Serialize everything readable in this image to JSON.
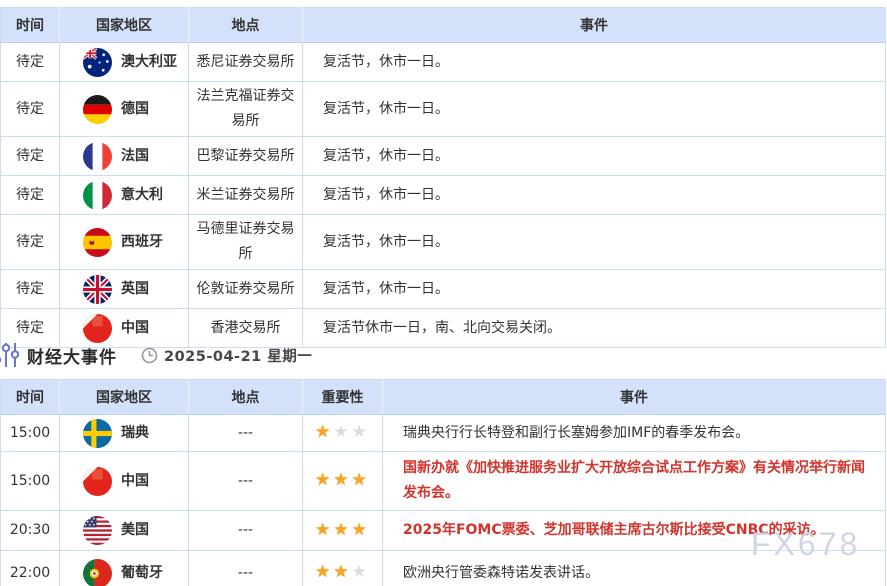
{
  "page": {
    "watermark": "FX678"
  },
  "holiday_table": {
    "headers": {
      "time": "时间",
      "country": "国家地区",
      "location": "地点",
      "event": "事件"
    },
    "rows": [
      {
        "time": "待定",
        "country": "澳大利亚",
        "flag": "australia",
        "location": "悉尼证券交易所",
        "event": "复活节，休市一日。"
      },
      {
        "time": "待定",
        "country": "德国",
        "flag": "germany",
        "location": "法兰克福证券交易所",
        "event": "复活节，休市一日。"
      },
      {
        "time": "待定",
        "country": "法国",
        "flag": "france",
        "location": "巴黎证券交易所",
        "event": "复活节，休市一日。"
      },
      {
        "time": "待定",
        "country": "意大利",
        "flag": "italy",
        "location": "米兰证券交易所",
        "event": "复活节，休市一日。"
      },
      {
        "time": "待定",
        "country": "西班牙",
        "flag": "spain",
        "location": "马德里证券交易所",
        "event": "复活节，休市一日。"
      },
      {
        "time": "待定",
        "country": "英国",
        "flag": "uk",
        "location": "伦敦证券交易所",
        "event": "复活节，休市一日。"
      },
      {
        "time": "待定",
        "country": "中国",
        "flag": "china",
        "location": "香港交易所",
        "event": "复活节休市一日，南、北向交易关闭。"
      }
    ]
  },
  "section": {
    "title": "财经大事件",
    "date": "2025-04-21 星期一"
  },
  "events_table": {
    "headers": {
      "time": "时间",
      "country": "国家地区",
      "location": "地点",
      "importance": "重要性",
      "event": "事件"
    },
    "rows": [
      {
        "time": "15:00",
        "country": "瑞典",
        "flag": "sweden",
        "location": "---",
        "importance": 1,
        "event": "瑞典央行行长特登和副行长塞姆参加IMF的春季发布会。"
      },
      {
        "time": "15:00",
        "country": "中国",
        "flag": "china",
        "location": "---",
        "importance": 3,
        "event": "国新办就《加快推进服务业扩大开放综合试点工作方案》有关情况举行新闻发布会。"
      },
      {
        "time": "20:30",
        "country": "美国",
        "flag": "usa",
        "location": "---",
        "importance": 3,
        "event": "2025年FOMC票委、芝加哥联储主席古尔斯比接受CNBC的采访。"
      },
      {
        "time": "22:00",
        "country": "葡萄牙",
        "flag": "portugal",
        "location": "---",
        "importance": 2,
        "event": "欧洲央行管委森特诺发表讲话。"
      }
    ]
  },
  "colors": {
    "header_bg": "#d3e1fb",
    "border": "#ccdcf3",
    "highlight_red": "#d0342c",
    "star_gold": "#f6a623",
    "star_gray": "#dcdcdc",
    "watermark": "#cfd5e4"
  }
}
